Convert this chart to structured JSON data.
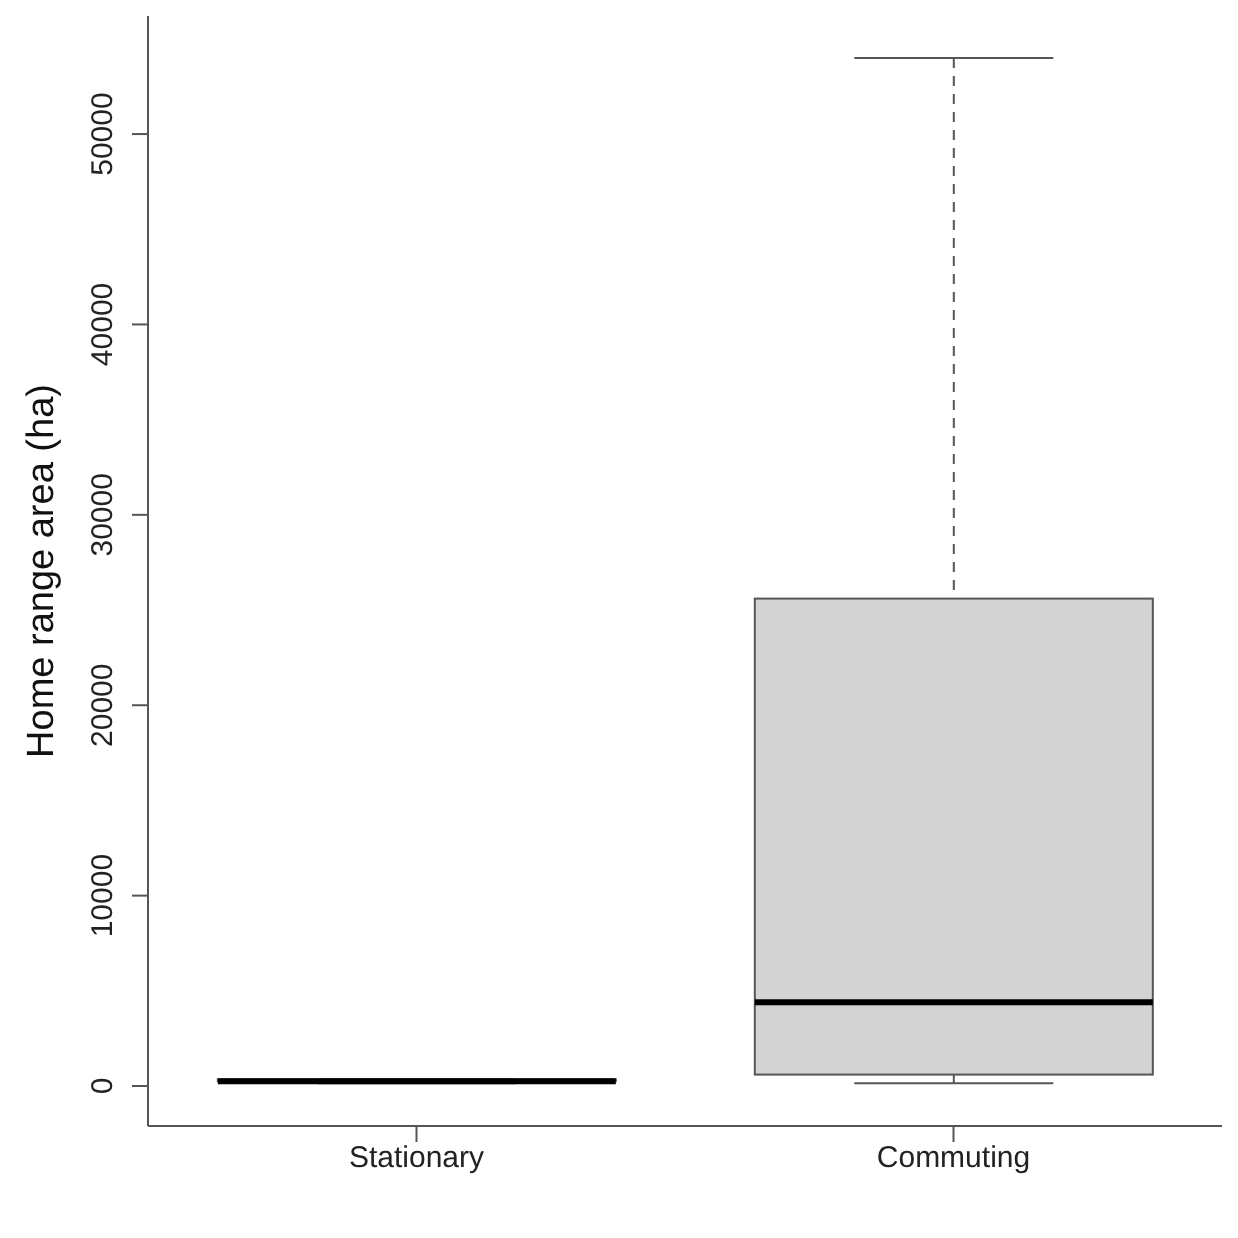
{
  "chart_data": {
    "type": "box",
    "ylabel": "Home range area (ha)",
    "categories": [
      "Stationary",
      "Commuting"
    ],
    "series": [
      {
        "color": "#d3d3d3",
        "boxes": [
          {
            "low": 150,
            "q1": 250,
            "median": 250,
            "q3": 350,
            "high": 350
          },
          {
            "low": 150,
            "q1": 600,
            "median": 4400,
            "q3": 25600,
            "high": 54000
          }
        ]
      }
    ],
    "ylim": [
      -2100,
      56200
    ],
    "yticks": [
      0,
      10000,
      20000,
      30000,
      40000,
      50000
    ],
    "grid": false
  }
}
